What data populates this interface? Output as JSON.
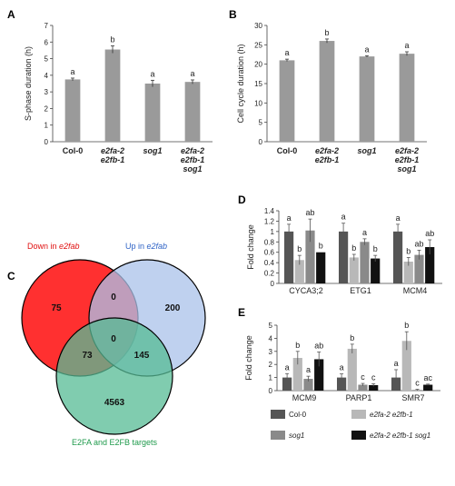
{
  "colors": {
    "bar_grey": "#9a9a9a",
    "col0": "#555555",
    "e2fa": "#b8b8b8",
    "sog1": "#8a8a8a",
    "triple": "#111111",
    "venn_red": "#ff1a1a",
    "venn_blue": "#a9c2ea",
    "venn_green": "#56bb94",
    "label_blue": "#2f63c6",
    "label_red": "#e01010",
    "label_green": "#1f9a4c"
  },
  "panel_letters": {
    "A": "A",
    "B": "B",
    "C": "C",
    "D": "D",
    "E": "E"
  },
  "chart_data": [
    {
      "id": "A",
      "type": "bar",
      "ylabel": "S-phase duration (h)",
      "ylim": [
        0,
        7
      ],
      "yticks": [
        0,
        1,
        2,
        3,
        4,
        5,
        6,
        7
      ],
      "categories": [
        [
          "Col-0"
        ],
        [
          "e2fa-2",
          "e2fb-1"
        ],
        [
          "sog1"
        ],
        [
          "e2fa-2",
          "e2fb-1",
          "sog1"
        ]
      ],
      "values": [
        3.75,
        5.55,
        3.5,
        3.6
      ],
      "errors": [
        0.08,
        0.22,
        0.2,
        0.12
      ],
      "letters": [
        "a",
        "b",
        "a",
        "a"
      ]
    },
    {
      "id": "B",
      "type": "bar",
      "ylabel": "Cell cycle duration (h)",
      "ylim": [
        0,
        30
      ],
      "yticks": [
        0,
        5,
        10,
        15,
        20,
        25,
        30
      ],
      "categories": [
        [
          "Col-0"
        ],
        [
          "e2fa-2",
          "e2fb-1"
        ],
        [
          "sog1"
        ],
        [
          "e2fa-2",
          "e2fb-1",
          "sog1"
        ]
      ],
      "values": [
        21,
        26,
        22,
        22.7
      ],
      "errors": [
        0.3,
        0.5,
        0.2,
        0.5
      ],
      "letters": [
        "a",
        "b",
        "a",
        "a"
      ]
    },
    {
      "id": "D",
      "type": "bar",
      "ylabel": "Fold change",
      "ylim": [
        0,
        1.4
      ],
      "yticks": [
        "0",
        "0.2",
        "0.4",
        "0.6",
        "0.8",
        "1",
        "1.2",
        "1.4"
      ],
      "categories": [
        "CYCA3;2",
        "ETG1",
        "MCM4"
      ],
      "series": [
        {
          "name": "Col-0",
          "values": [
            1.0,
            1.0,
            1.0
          ],
          "errors": [
            0.14,
            0.16,
            0.14
          ],
          "letters": [
            "a",
            "a",
            "a"
          ]
        },
        {
          "name": "e2fa-2 e2fb-1",
          "values": [
            0.45,
            0.5,
            0.42
          ],
          "errors": [
            0.09,
            0.06,
            0.08
          ],
          "letters": [
            "b",
            "b",
            "b"
          ]
        },
        {
          "name": "sog1",
          "values": [
            1.02,
            0.8,
            0.55
          ],
          "errors": [
            0.22,
            0.06,
            0.09
          ],
          "letters": [
            "ab",
            "a",
            "ab"
          ]
        },
        {
          "name": "e2fa-2 e2fb-1 sog1",
          "values": [
            0.6,
            0.48,
            0.7
          ],
          "errors": [
            0.0,
            0.06,
            0.14
          ],
          "letters": [
            "b",
            "b",
            "ab"
          ]
        }
      ]
    },
    {
      "id": "E",
      "type": "bar",
      "ylabel": "Fold change",
      "ylim": [
        0,
        5
      ],
      "yticks": [
        "0",
        "1",
        "2",
        "3",
        "4",
        "5"
      ],
      "categories": [
        "MCM9",
        "PARP1",
        "SMR7"
      ],
      "series": [
        {
          "name": "Col-0",
          "values": [
            1.0,
            1.0,
            1.0
          ],
          "errors": [
            0.3,
            0.28,
            0.6
          ],
          "letters": [
            "a",
            "a",
            "a"
          ]
        },
        {
          "name": "e2fa-2 e2fb-1",
          "values": [
            2.5,
            3.2,
            3.8
          ],
          "errors": [
            0.5,
            0.35,
            0.7
          ],
          "letters": [
            "b",
            "b",
            "b"
          ]
        },
        {
          "name": "sog1",
          "values": [
            0.9,
            0.45,
            0.05
          ],
          "errors": [
            0.2,
            0.1,
            0.05
          ],
          "letters": [
            "a",
            "c",
            "c"
          ]
        },
        {
          "name": "e2fa-2 e2fb-1 sog1",
          "values": [
            2.4,
            0.42,
            0.45
          ],
          "errors": [
            0.55,
            0.1,
            0.05
          ],
          "letters": [
            "ab",
            "c",
            "ac"
          ]
        }
      ]
    }
  ],
  "venn": {
    "down_label_prefix": "Down in ",
    "down_label_italic": "e2fab",
    "up_label_prefix": "Up in ",
    "up_label_italic": "e2fab",
    "targets_label": "E2FA and E2FB targets",
    "counts": {
      "down_only": "75",
      "down_up": "0",
      "up_only": "200",
      "all_three": "0",
      "down_targets": "73",
      "up_targets": "145",
      "targets_only": "4563"
    }
  },
  "legend": [
    {
      "label": "Col-0",
      "italic": false,
      "color": "#555555"
    },
    {
      "label": "e2fa-2 e2fb-1",
      "italic": true,
      "color": "#b8b8b8"
    },
    {
      "label": "sog1",
      "italic": true,
      "color": "#8a8a8a"
    },
    {
      "label": "e2fa-2 e2fb-1 sog1",
      "italic": true,
      "color": "#111111"
    }
  ]
}
